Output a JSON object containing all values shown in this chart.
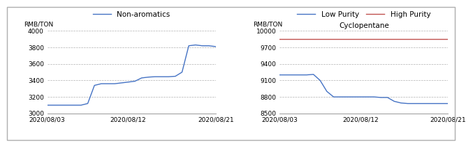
{
  "left": {
    "legend_label": "Non-aromatics",
    "ylabel": "RMB/TON",
    "ylim": [
      3000,
      4000
    ],
    "yticks": [
      3000,
      3200,
      3400,
      3600,
      3800,
      4000
    ],
    "xtick_labels": [
      "2020/08/03",
      "2020/08/12",
      "2020/08/21"
    ],
    "line_color": "#4472C4",
    "x": [
      0,
      1,
      2,
      3,
      4,
      5,
      6,
      7,
      8,
      9,
      10,
      11,
      12,
      13,
      14,
      15,
      16,
      17,
      18,
      19,
      20,
      21,
      22,
      23,
      24,
      25
    ],
    "y": [
      3100,
      3100,
      3100,
      3100,
      3100,
      3100,
      3120,
      3340,
      3360,
      3360,
      3360,
      3370,
      3380,
      3390,
      3430,
      3440,
      3445,
      3445,
      3445,
      3450,
      3500,
      3820,
      3830,
      3820,
      3820,
      3810
    ]
  },
  "right": {
    "title": "Cyclopentane",
    "ylabel": "RMB/TON",
    "ylim": [
      8500,
      10000
    ],
    "yticks": [
      8500,
      8800,
      9100,
      9400,
      9700,
      10000
    ],
    "xtick_labels": [
      "2020/08/03",
      "2020/08/12",
      "2020/08/21"
    ],
    "low_label": "Low Purity",
    "high_label": "High Purity",
    "low_color": "#4472C4",
    "high_color": "#C0504D",
    "x": [
      0,
      1,
      2,
      3,
      4,
      5,
      6,
      7,
      8,
      9,
      10,
      11,
      12,
      13,
      14,
      15,
      16,
      17,
      18,
      19,
      20,
      21,
      22,
      23,
      24,
      25
    ],
    "low_y": [
      9200,
      9200,
      9200,
      9200,
      9200,
      9210,
      9100,
      8900,
      8800,
      8800,
      8800,
      8800,
      8800,
      8800,
      8800,
      8790,
      8790,
      8720,
      8690,
      8680,
      8680,
      8680,
      8680,
      8680,
      8680,
      8680
    ],
    "high_y": [
      9850,
      9850,
      9850,
      9850,
      9850,
      9850,
      9850,
      9850,
      9850,
      9850,
      9850,
      9850,
      9850,
      9850,
      9850,
      9850,
      9850,
      9850,
      9850,
      9850,
      9850,
      9850,
      9850,
      9850,
      9850,
      9850
    ]
  },
  "bg_color": "#ffffff",
  "outer_border_color": "#b0b0b0",
  "grid_color": "#b0b0b0",
  "tick_fontsize": 6.5,
  "label_fontsize": 6.5,
  "legend_fontsize": 7.5
}
